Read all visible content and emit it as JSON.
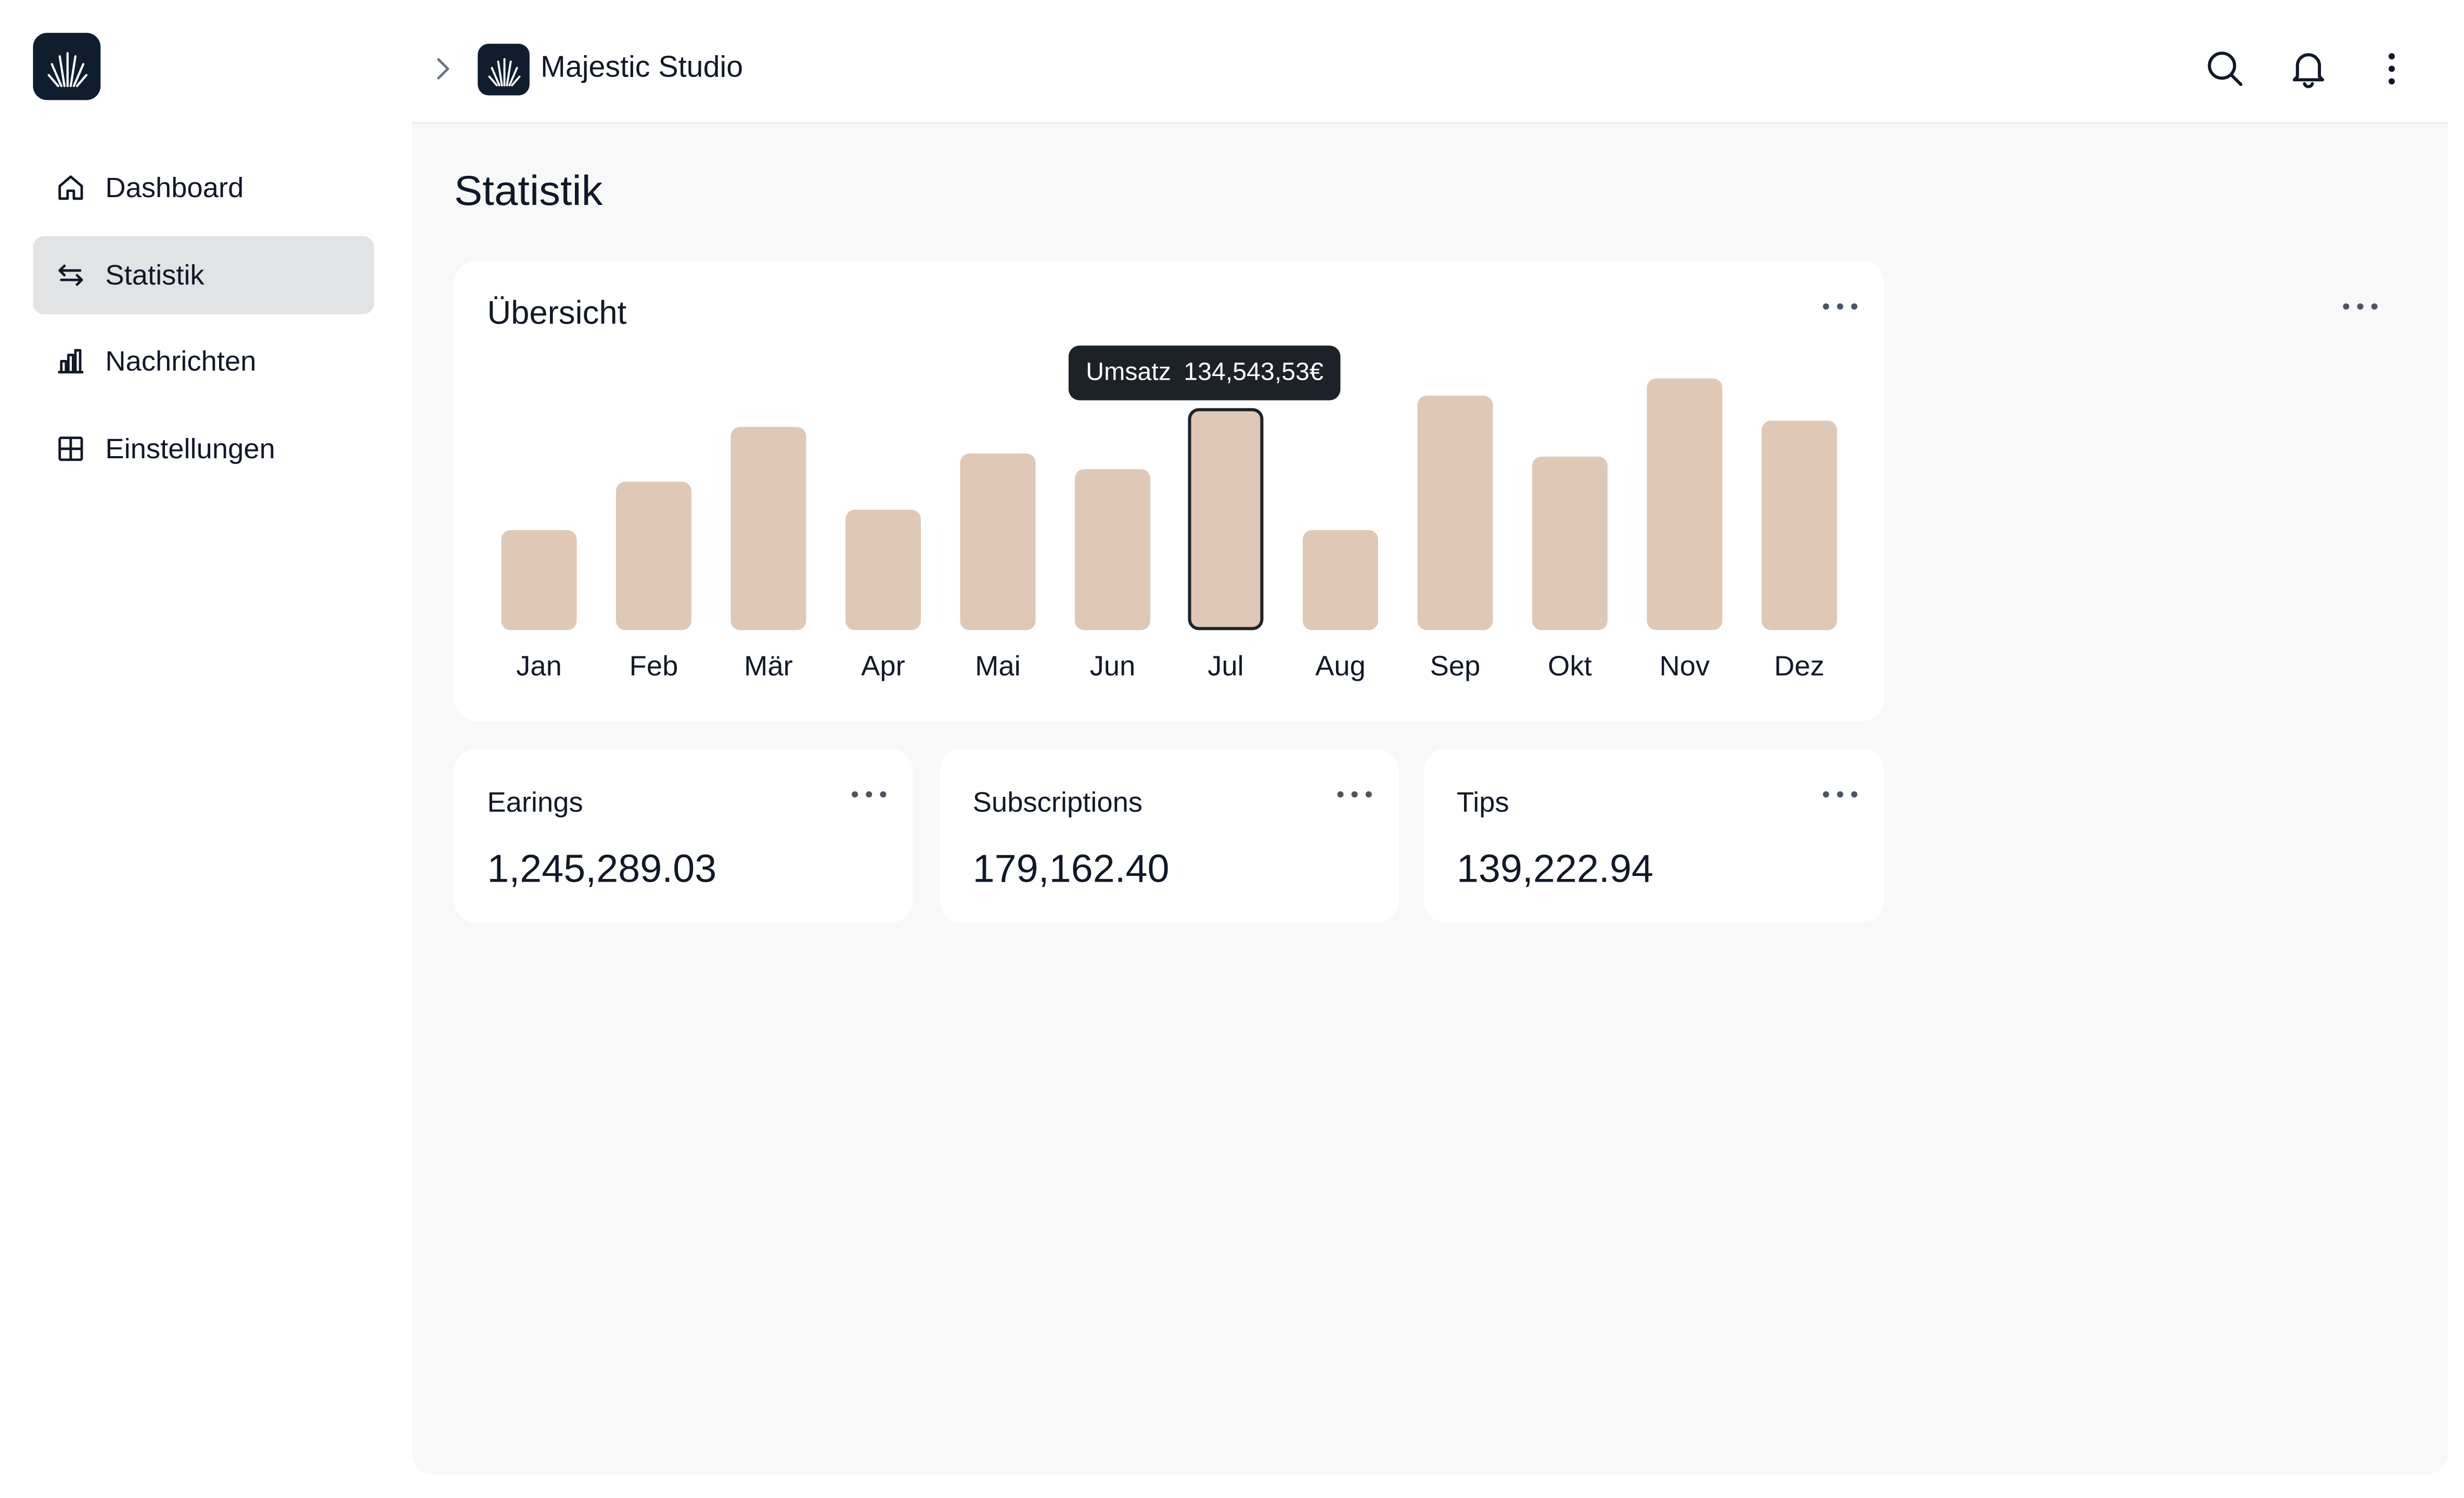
{
  "brand": {
    "name": "Majestic Studio"
  },
  "sidebar": {
    "items": [
      {
        "label": "Dashboard",
        "icon": "home-icon",
        "active": false
      },
      {
        "label": "Statistik",
        "icon": "arrows-swap-icon",
        "active": true
      },
      {
        "label": "Nachrichten",
        "icon": "bar-chart-icon",
        "active": false
      },
      {
        "label": "Einstellungen",
        "icon": "grid-icon",
        "active": false
      }
    ]
  },
  "header": {
    "icons": [
      "search-icon",
      "bell-icon",
      "kebab-menu-icon"
    ]
  },
  "page": {
    "title": "Statistik"
  },
  "overview": {
    "title": "Übersicht",
    "tooltip": {
      "label": "Umsatz",
      "value": "134,543,53€"
    },
    "selected_month": "Jul"
  },
  "chart_data": {
    "type": "bar",
    "categories": [
      "Jan",
      "Feb",
      "Mär",
      "Apr",
      "Mai",
      "Jun",
      "Jul",
      "Aug",
      "Sep",
      "Okt",
      "Nov",
      "Dez"
    ],
    "values": [
      0.4,
      0.59,
      0.81,
      0.48,
      0.7,
      0.64,
      0.88,
      0.4,
      0.93,
      0.69,
      1.0,
      0.83
    ],
    "title": "Übersicht",
    "bar_color": "#dfc8b6",
    "highlight": "Jul"
  },
  "stats": [
    {
      "label": "Earings",
      "value": "1,245,289.03"
    },
    {
      "label": "Subscriptions",
      "value": "179,162.40"
    },
    {
      "label": "Tips",
      "value": "139,222.94"
    }
  ],
  "colors": {
    "brand_dark": "#0f1d2e",
    "active_nav": "#e2e3e5",
    "bar": "#dfc8b6",
    "tooltip_bg": "#1d2228",
    "main_bg": "#f8f8f8"
  }
}
